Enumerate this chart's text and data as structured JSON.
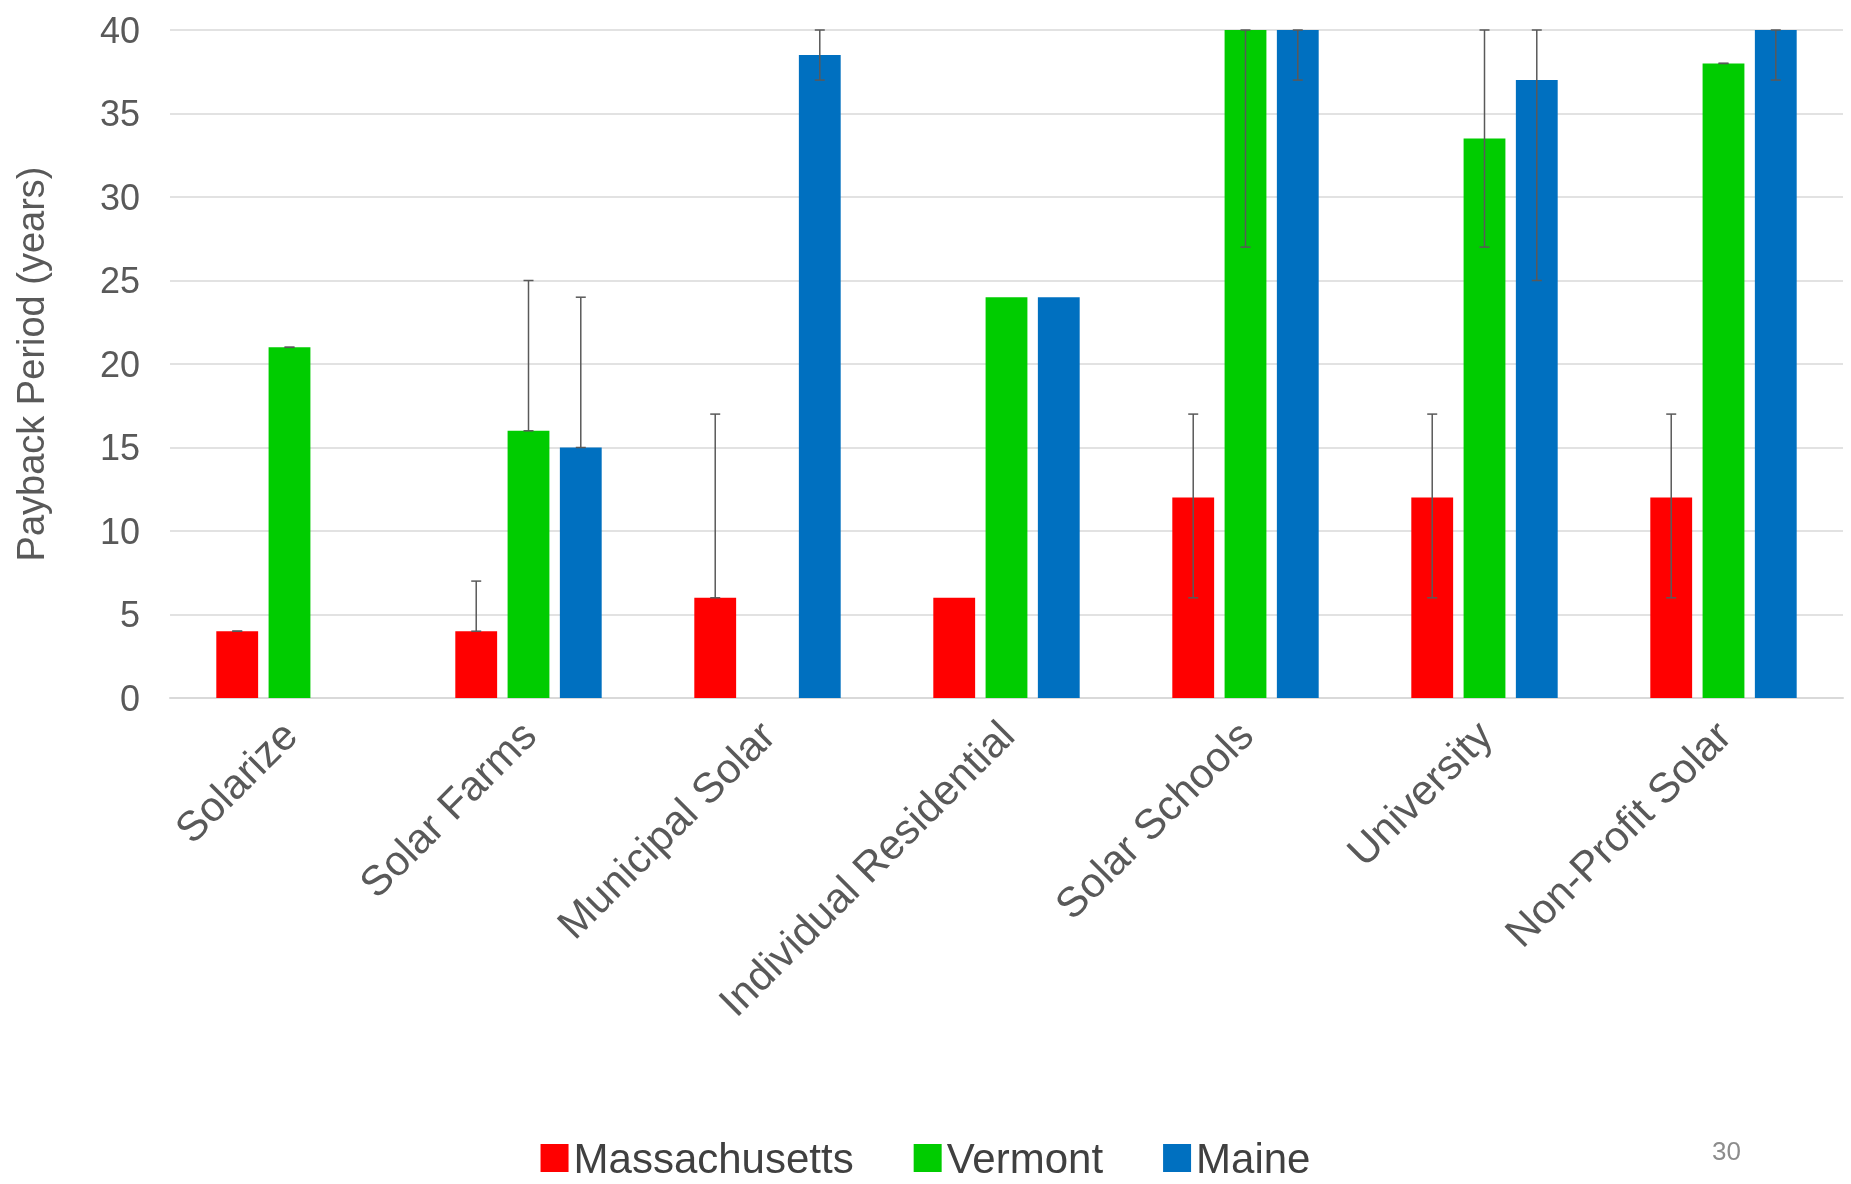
{
  "chart_data": {
    "type": "bar",
    "ylabel": "Payback Period (years)",
    "categories": [
      "Solarize",
      "Solar Farms",
      "Municipal Solar",
      "Individual Residential",
      "Solar Schools",
      "University",
      "Non-Profit Solar"
    ],
    "series": [
      {
        "name": "Massachusetts",
        "color": "#ff0000",
        "values": [
          4,
          4,
          6,
          6,
          12,
          12,
          12
        ],
        "errors": [
          [
            4,
            4
          ],
          [
            4,
            7
          ],
          [
            6,
            17
          ],
          null,
          [
            6,
            17
          ],
          [
            6,
            17
          ],
          [
            6,
            17
          ]
        ]
      },
      {
        "name": "Vermont",
        "color": "#00cc00",
        "values": [
          21,
          16,
          0,
          24,
          40,
          33.5,
          38
        ],
        "errors": [
          [
            21,
            21
          ],
          [
            16,
            25
          ],
          null,
          null,
          [
            27,
            40
          ],
          [
            27,
            40
          ],
          [
            38,
            38
          ]
        ]
      },
      {
        "name": "Maine",
        "color": "#0070c0",
        "values": [
          0,
          15,
          38.5,
          24,
          40,
          37,
          40
        ],
        "errors": [
          null,
          [
            15,
            24
          ],
          [
            37,
            40
          ],
          null,
          [
            37,
            40
          ],
          [
            25,
            40
          ],
          [
            37,
            40
          ]
        ]
      }
    ],
    "ylim": [
      0,
      40
    ],
    "yticks": [
      0,
      5,
      10,
      15,
      20,
      25,
      30,
      35,
      40
    ],
    "grid": "y",
    "legend": "bottom",
    "annotations": [
      "30"
    ]
  }
}
